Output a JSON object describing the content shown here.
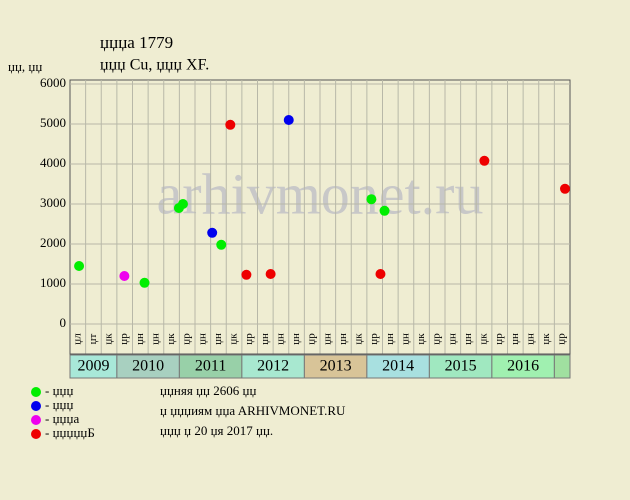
{
  "chart_data": {
    "type": "scatter",
    "title": "џџџa 1779",
    "subtitle": "џџџ Cu, џџџ XF.",
    "y_label": "џџ, џџ",
    "watermark": "arhivmonet.ru",
    "ylim": [
      0,
      6000
    ],
    "yticks": [
      0,
      1000,
      2000,
      3000,
      4000,
      5000,
      6000
    ],
    "grid": true,
    "xlim": [
      0,
      32
    ],
    "year_groups": [
      {
        "label": "2009",
        "color": "#a8e8d8",
        "columns": [
          "џл",
          "џт",
          "џк"
        ]
      },
      {
        "label": "2010",
        "color": "#a8d0c0",
        "columns": [
          "џр",
          "џн",
          "џн",
          "џк"
        ]
      },
      {
        "label": "2011",
        "color": "#98d0a8",
        "columns": [
          "џр",
          "џн",
          "џн",
          "џк"
        ]
      },
      {
        "label": "2012",
        "color": "#a8e8d0",
        "columns": [
          "џр",
          "џн",
          "џн",
          "џн"
        ]
      },
      {
        "label": "2013",
        "color": "#d8c498",
        "columns": [
          "џр",
          "џн",
          "џн",
          "џк"
        ]
      },
      {
        "label": "2014",
        "color": "#a8e0e0",
        "columns": [
          "џр",
          "џн",
          "џн",
          "џк"
        ]
      },
      {
        "label": "2015",
        "color": "#a0e8c0",
        "columns": [
          "џр",
          "џн",
          "џн",
          "џк"
        ]
      },
      {
        "label": "2016",
        "color": "#a0f0b0",
        "columns": [
          "џр",
          "џн",
          "џн",
          "џк"
        ]
      },
      {
        "label": null,
        "color": "#a0e0a0",
        "columns": [
          "џр"
        ]
      }
    ],
    "series": [
      {
        "name": "- џџџ",
        "color": "#00ee00",
        "x": [
          0.58,
          4.77,
          6.97,
          7.23,
          9.68,
          19.29,
          20.13
        ],
        "values": [
          1450,
          1030,
          2900,
          3000,
          1980,
          3120,
          2830
        ]
      },
      {
        "name": "- џџџ",
        "color": "#0000ee",
        "x": [
          9.1,
          14.0
        ],
        "values": [
          2280,
          5100
        ]
      },
      {
        "name": "- џџџa",
        "color": "#ee00ee",
        "x": [
          3.48
        ],
        "values": [
          1200
        ]
      },
      {
        "name": "- џџџџџБ",
        "color": "#ee0000",
        "x": [
          10.26,
          11.29,
          12.84,
          19.87,
          26.52,
          31.68
        ],
        "values": [
          4980,
          1230,
          1250,
          1250,
          4080,
          3380
        ]
      }
    ],
    "notes": [
      "џџняя џџ 2606 џџ",
      "џ џџџиям џџa ARHIVMONET.RU",
      "џџџ џ 20 џя 2017 џџ."
    ]
  }
}
